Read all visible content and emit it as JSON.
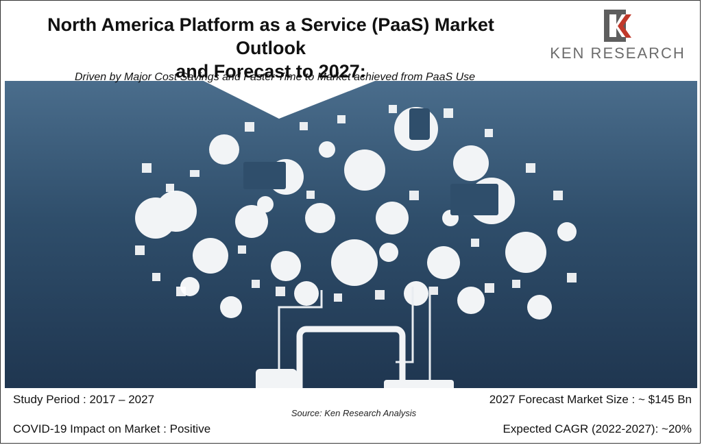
{
  "header": {
    "title_line1": "North America Platform as a Service (PaaS) Market Outlook",
    "title_line2": "and Forecast to 2027:",
    "subtitle": "Driven by Major Cost Savings and Faster Time to Market achieved from PaaS Use"
  },
  "logo": {
    "brand_text": "KEN RESEARCH",
    "icon": "ken-research-k-logo"
  },
  "colors": {
    "hero_top": "#4a6d8c",
    "hero_bottom": "#1f3650",
    "logo_red": "#c0392b",
    "logo_gray": "#6c6c6c"
  },
  "stats": {
    "study_period": "Study Period : 2017 – 2027",
    "forecast": "2027 Forecast Market Size : ~ $145 Bn",
    "covid": "COVID-19 Impact on Market : Positive",
    "cagr": "Expected CAGR (2022-2027): ~20%"
  },
  "source": "Source: Ken Research Analysis",
  "illustration": {
    "subject": "cloud-of-app-icons-connected-to-devices"
  }
}
